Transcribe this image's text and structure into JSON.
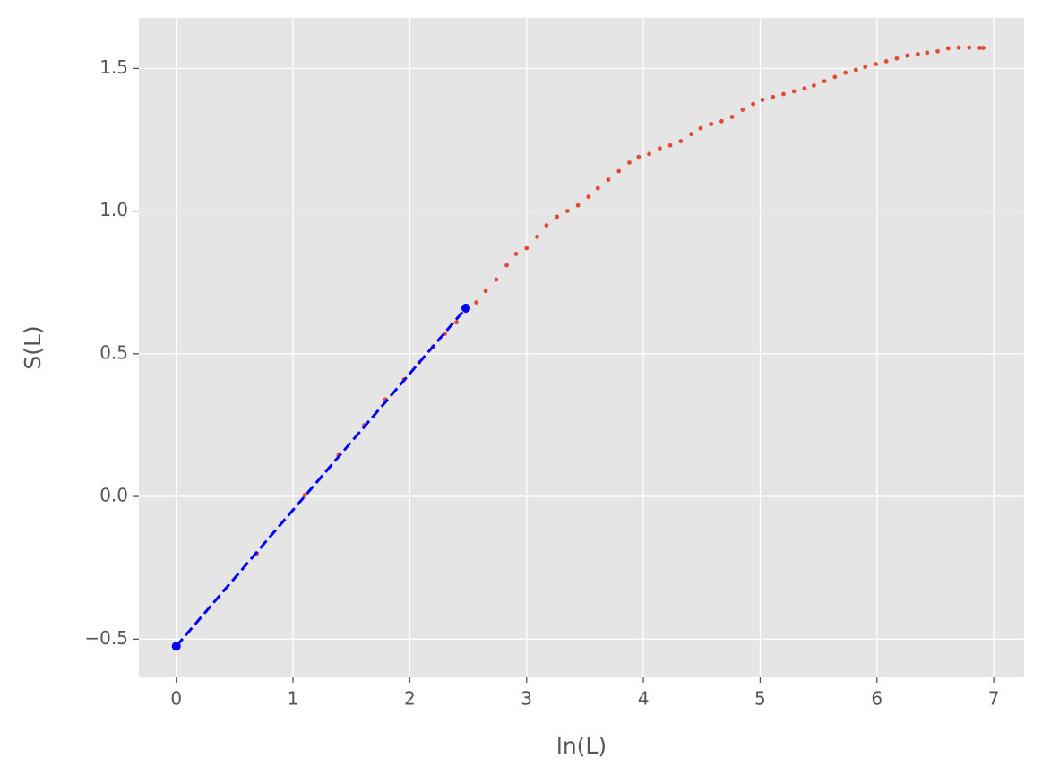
{
  "chart_data": {
    "type": "scatter",
    "xlabel": "ln(L)",
    "ylabel": "S(L)",
    "xlim": [
      -0.32,
      7.26
    ],
    "ylim": [
      -0.634,
      1.677
    ],
    "xticks": [
      0,
      1,
      2,
      3,
      4,
      5,
      6,
      7
    ],
    "yticks": [
      {
        "value": -0.5,
        "label": "−0.5"
      },
      {
        "value": 0,
        "label": "0.0"
      },
      {
        "value": 0.5,
        "label": "0.5"
      },
      {
        "value": 1,
        "label": "1.0"
      },
      {
        "value": 1.5,
        "label": "1.5"
      }
    ],
    "grid": true,
    "series": [
      {
        "kind": "scatter",
        "color": "#e24a33",
        "x": [
          0.69,
          1.1,
          1.39,
          1.61,
          1.79,
          1.95,
          2.08,
          2.2,
          2.3,
          2.4,
          2.48,
          2.57,
          2.65,
          2.74,
          2.83,
          2.91,
          3.0,
          3.09,
          3.17,
          3.26,
          3.35,
          3.44,
          3.53,
          3.61,
          3.7,
          3.79,
          3.88,
          3.96,
          4.05,
          4.14,
          4.23,
          4.32,
          4.41,
          4.49,
          4.58,
          4.67,
          4.76,
          4.85,
          4.94,
          5.02,
          5.11,
          5.2,
          5.29,
          5.38,
          5.46,
          5.55,
          5.64,
          5.73,
          5.82,
          5.9,
          5.99,
          6.08,
          6.17,
          6.26,
          6.35,
          6.43,
          6.52,
          6.61,
          6.7,
          6.79,
          6.88,
          6.91
        ],
        "values": [
          -0.2,
          0.005,
          0.145,
          0.25,
          0.34,
          0.41,
          0.47,
          0.525,
          0.57,
          0.61,
          0.65,
          0.68,
          0.72,
          0.76,
          0.81,
          0.85,
          0.87,
          0.91,
          0.95,
          0.98,
          1.0,
          1.02,
          1.05,
          1.08,
          1.11,
          1.14,
          1.17,
          1.19,
          1.2,
          1.22,
          1.23,
          1.245,
          1.27,
          1.29,
          1.305,
          1.315,
          1.33,
          1.355,
          1.375,
          1.39,
          1.4,
          1.41,
          1.42,
          1.43,
          1.44,
          1.455,
          1.47,
          1.485,
          1.495,
          1.505,
          1.515,
          1.525,
          1.535,
          1.545,
          1.55,
          1.555,
          1.56,
          1.57,
          1.573,
          1.573,
          1.572,
          1.572
        ]
      },
      {
        "kind": "line",
        "color": "#0000ff",
        "dashed": true,
        "markers": true,
        "x": [
          0,
          2.48
        ],
        "values": [
          -0.525,
          0.66
        ]
      }
    ]
  }
}
